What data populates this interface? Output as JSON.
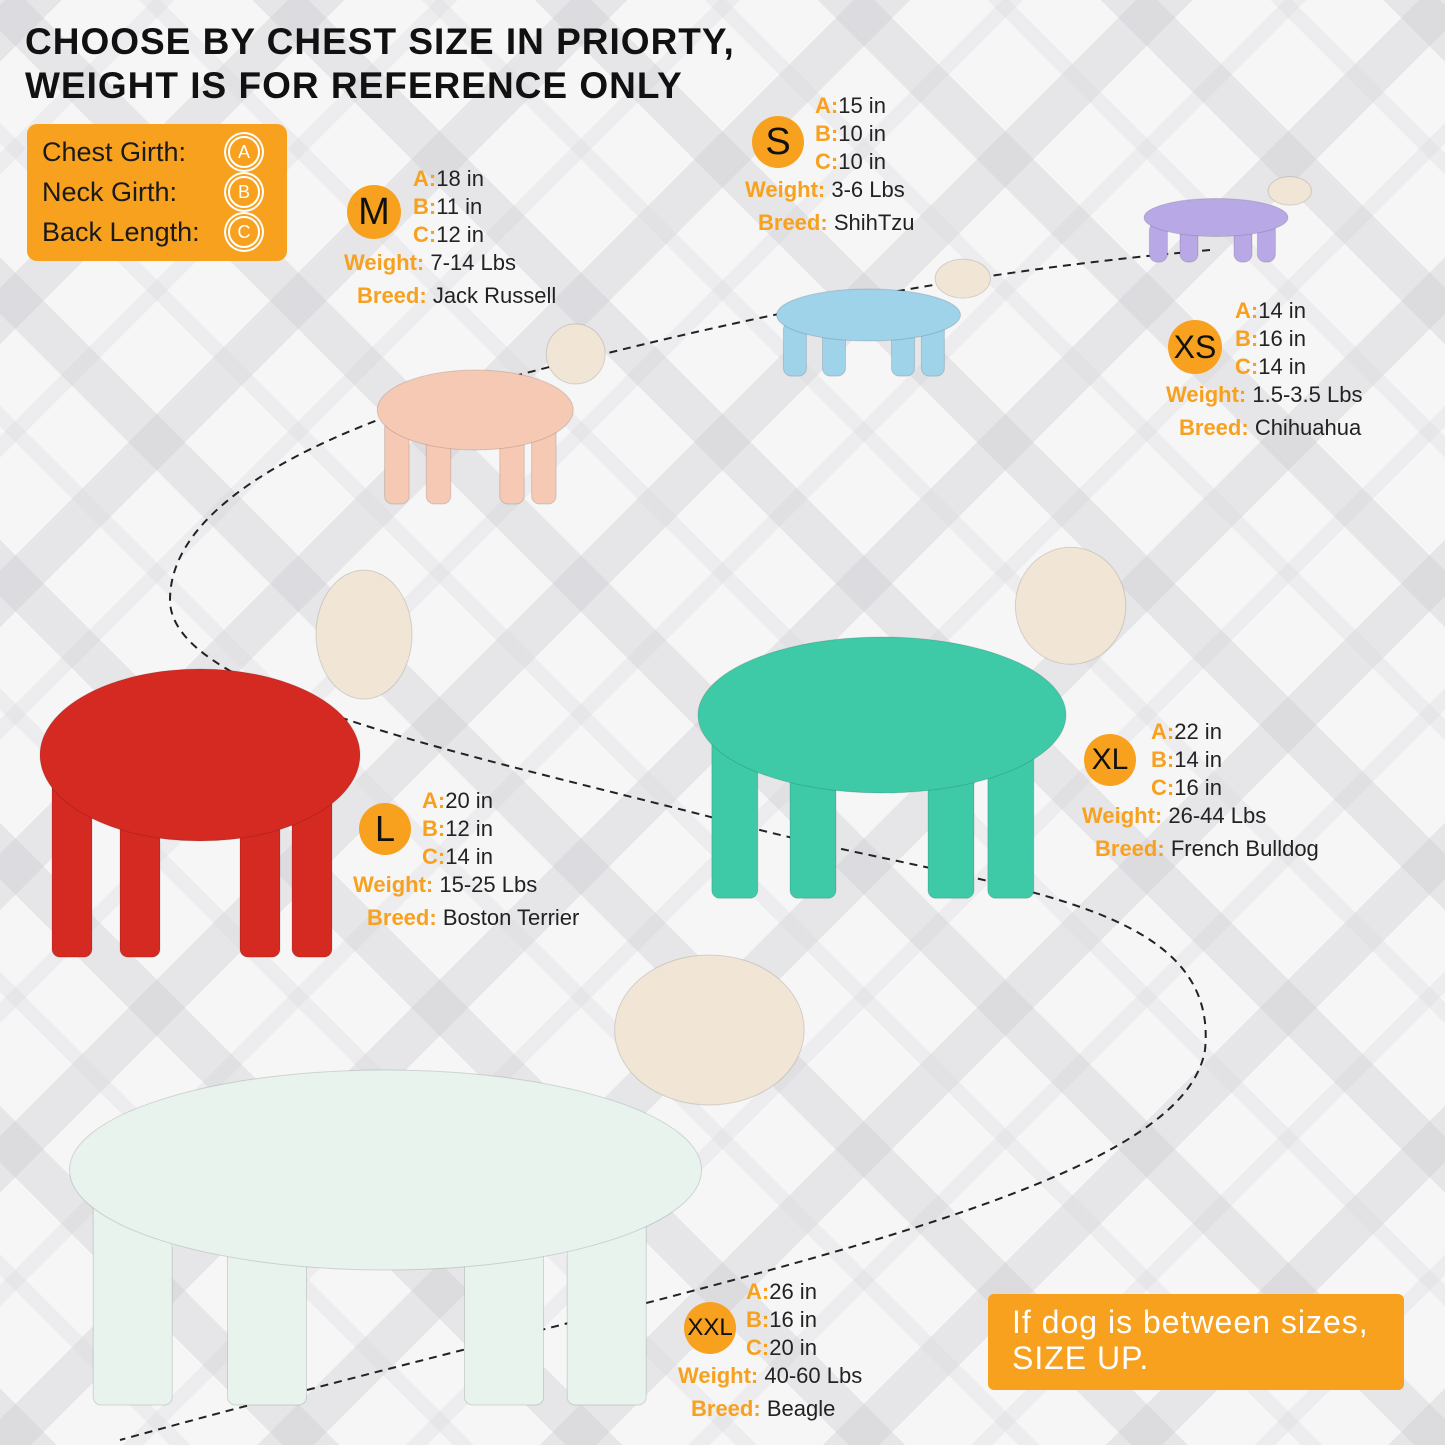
{
  "title": {
    "line1": "CHOOSE BY CHEST SIZE IN PRIORTY,",
    "line2": "WEIGHT IS FOR REFERENCE ONLY"
  },
  "legend": [
    {
      "label": "Chest Girth:",
      "letter": "A"
    },
    {
      "label": "Neck Girth:",
      "letter": "B"
    },
    {
      "label": "Back Length:",
      "letter": "C"
    }
  ],
  "labels": {
    "a": "A:",
    "b": "B:",
    "c": "C:",
    "weight": "Weight:",
    "breed": "Breed:"
  },
  "sizes": [
    {
      "size": "XS",
      "a": "14 in",
      "b": "16 in",
      "c": "14 in",
      "weight": "1.5-3.5 Lbs",
      "breed": "Chihuahua",
      "pajama_color": "#b9a8e6"
    },
    {
      "size": "S",
      "a": "15 in",
      "b": "10 in",
      "c": "10 in",
      "weight": "3-6 Lbs",
      "breed": "ShihTzu",
      "pajama_color": "#9fd3ea"
    },
    {
      "size": "M",
      "a": "18 in",
      "b": "11 in",
      "c": "12 in",
      "weight": "7-14 Lbs",
      "breed": "Jack Russell",
      "pajama_color": "#f6c9b4"
    },
    {
      "size": "L",
      "a": "20 in",
      "b": "12 in",
      "c": "14 in",
      "weight": "15-25 Lbs",
      "breed": "Boston Terrier",
      "pajama_color": "#d42a22"
    },
    {
      "size": "XL",
      "a": "22 in",
      "b": "14 in",
      "c": "16 in",
      "weight": "26-44 Lbs",
      "breed": "French Bulldog",
      "pajama_color": "#3fcaa7"
    },
    {
      "size": "XXL",
      "a": "26 in",
      "b": "16 in",
      "c": "20 in",
      "weight": "40-60 Lbs",
      "breed": "Beagle",
      "pajama_color": "#e8f3ee"
    }
  ],
  "note": {
    "line1": "If dog is between sizes,",
    "line2": "SIZE UP."
  },
  "colors": {
    "accent": "#f7a11f",
    "text": "#111111"
  }
}
